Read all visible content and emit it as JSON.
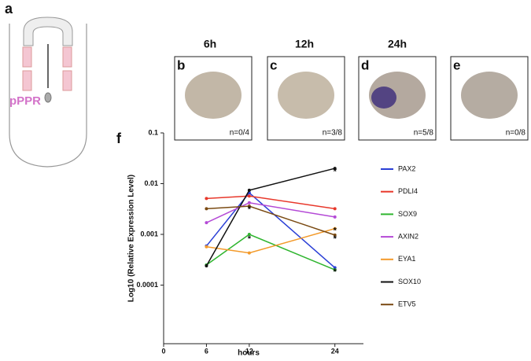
{
  "panels": {
    "a": {
      "letter": "a",
      "label": "pPPR"
    },
    "times": [
      "6h",
      "12h",
      "24h"
    ],
    "images": [
      {
        "letter": "b",
        "count": "n=0/4"
      },
      {
        "letter": "c",
        "count": "n=3/8"
      },
      {
        "letter": "d",
        "count": "n=5/8"
      },
      {
        "letter": "e",
        "count": "n=0/8"
      }
    ],
    "f": {
      "letter": "f"
    }
  },
  "chart_data": {
    "type": "line",
    "x_label": "hours",
    "y_label": "Log10 (Relative Expression Level)",
    "x": [
      6,
      12,
      24
    ],
    "xlim": [
      0,
      28
    ],
    "xticks": [
      0,
      6,
      12,
      24
    ],
    "ylim": [
      7e-06,
      0.1
    ],
    "yticks": [
      0.1,
      0.01,
      0.001,
      0.0001
    ],
    "log_y": true,
    "series": [
      {
        "name": "PAX2",
        "color": "#2a3fd6",
        "values": [
          0.00059,
          0.0066,
          0.00022
        ]
      },
      {
        "name": "PDLI4",
        "color": "#e8382b",
        "values": [
          0.0051,
          0.0057,
          0.0032
        ]
      },
      {
        "name": "SOX9",
        "color": "#2fb52f",
        "values": [
          0.00025,
          0.001,
          0.0002
        ]
      },
      {
        "name": "AXIN2",
        "color": "#b44ad6",
        "values": [
          0.0017,
          0.0042,
          0.0022
        ]
      },
      {
        "name": "EYA1",
        "color": "#f39a2a",
        "values": [
          0.00057,
          0.00043,
          0.0013
        ]
      },
      {
        "name": "SOX10",
        "color": "#111111",
        "values": [
          0.00024,
          0.0074,
          0.02
        ]
      },
      {
        "name": "ETV5",
        "color": "#7a4a12",
        "values": [
          0.0032,
          0.0036,
          0.00097
        ]
      }
    ],
    "annotations": [
      {
        "text": "*",
        "x": 12,
        "y": 0.0009
      },
      {
        "text": "*",
        "x": 12,
        "y": 0.0034
      },
      {
        "text": "*",
        "x": 24,
        "y": 0.019
      },
      {
        "text": "*",
        "x": 24,
        "y": 0.0013
      },
      {
        "text": "*",
        "x": 24,
        "y": 0.0009
      },
      {
        "text": "*",
        "x": 24,
        "y": 0.0002
      }
    ]
  }
}
